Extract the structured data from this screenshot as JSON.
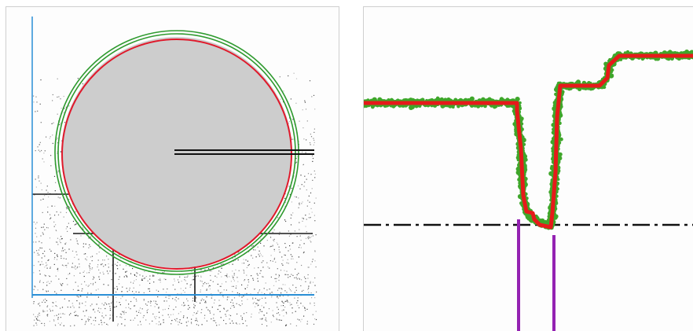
{
  "figure": {
    "panels": [
      {
        "name": "circle-measurement-panel",
        "elements": [
          "scatter-noise",
          "gray-disc",
          "outer-green-circle",
          "inner-green-circle",
          "red-fit-circle",
          "radius-double-line",
          "blue-baseline",
          "blue-vertical-axis",
          "black-reference-lines"
        ]
      },
      {
        "name": "step-profile-panel",
        "elements": [
          "green-point-cloud",
          "red-profile-trace",
          "dash-dot-reference-line",
          "purple-vertical-markers"
        ]
      }
    ],
    "colors": {
      "gray_disc": "#cdcdcd",
      "green_circle": "#2e9a2e",
      "red_fit": "#e0192b",
      "blue_axis": "#2a8fd6",
      "scatter": "#1a1a1a",
      "green_points": "#3fa62a",
      "red_trace": "#e61a1a",
      "purple_marker": "#9422b2",
      "reference_line": "#111111"
    }
  }
}
